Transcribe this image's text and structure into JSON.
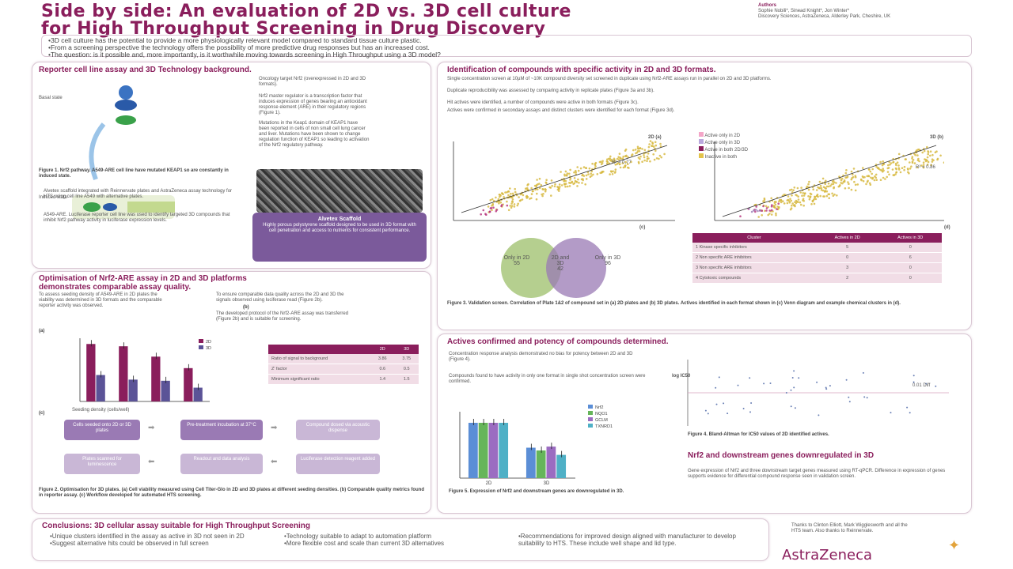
{
  "header": {
    "title_line1": "Side by side: An evaluation of 2D vs. 3D cell culture",
    "title_line2": "for High Throughput Screening in Drug Discovery",
    "authors_label": "Authors",
    "authors": "Sophie Nobili*, Sinead Knight*, Jon Winter*",
    "affiliation": "Discovery Sciences, AstraZeneca, Alderley Park, Cheshire, UK"
  },
  "intro": {
    "line1": "•3D cell culture has the potential to provide a more physiologically relevant model compared to standard tissue culture plastic.",
    "line2": "•From a screening perspective the technology offers the possibility of more predictive drug responses but has an increased cost.",
    "line3": "•The question: is it possible and, more importantly, is it worthwhile moving towards screening in High Throughput using a 3D model?"
  },
  "panel1": {
    "heading": "Reporter cell line assay and 3D Technology background.",
    "label_basal": "Basal state",
    "label_induced": "Induced state",
    "para1": "Oncology target Nrf2 (overexpressed in 2D and 3D formats).",
    "para2": "Nrf2 master regulator is a transcription factor that induces expression of genes bearing an antioxidant response element (ARE) in their regulatory regions (Figure 1).",
    "para3": "Mutations in the Keap1 domain of KEAP1 have been reported in cells of non small cell lung cancer and liver. Mutations have been shown to change regulation function of KEAP1 so leading to activation of the Nrf2 regulatory pathway.",
    "fig1_caption": "Figure 1. Nrf2 pathway. A549-ARE cell line have mutated KEAP1 so are constantly in induced state.",
    "para4": "Alvetex scaffold integrated with Reinnervate plates and AstraZeneca assay technology for HTS using cell line A549 with alternative plates.",
    "para5": "A549-ARE. Luciferase reporter cell line was used to identify targeted 3D compounds that inhibit Nrf2 pathway activity in luciferase expression levels.",
    "scaffold_title": "Alvetex Scaffold",
    "scaffold_text": "Highly porous polystyrene scaffold designed to be used in 3D format with cell penetration and access to nutrients for consistent performance."
  },
  "panel2": {
    "heading_line1": "Optimisation of Nrf2-ARE assay in 2D and 3D platforms",
    "heading_line2": "demonstrates comparable assay quality.",
    "para1": "To assess seeding density of A549-ARE in 2D plates the viability was determined in 3D formats and the comparable reporter activity was observed.",
    "para2": "To ensure comparable data quality across the 2D and 3D the signals observed using luciferase read (Figure 2b).",
    "para3": "The developed protocol of the Nrf2-ARE assay was transferred (Figure 2b) and is suitable for screening.",
    "label_a": "(a)",
    "label_b": "(b)",
    "label_c": "(c)",
    "x_axis_label": "Seeding density (cells/well)",
    "table_headers": [
      "",
      "2D",
      "3D"
    ],
    "table_rows": [
      [
        "Ratio of signal to background",
        "3.86",
        "3.75"
      ],
      [
        "Z' factor",
        "0.6",
        "0.5"
      ],
      [
        "Minimum significant ratio",
        "1.4",
        "1.5"
      ]
    ],
    "workflow": [
      "Cells seeded onto 2D or 3D plates",
      "Pre-treatment incubation at 37°C",
      "Compound dosed via acoustic dispense",
      "Plates scanned for luminescence",
      "Readout and data analysis",
      "Luciferase detection reagent added"
    ],
    "caption": "Figure 2. Optimisation for 3D plates. (a) Cell viability measured using Cell Titer-Glo in 2D and 3D plates at different seeding densities. (b) Comparable quality metrics found in reporter assay. (c) Workflow developed for automated HTS screening."
  },
  "panel3": {
    "heading": "Identification of compounds with specific activity in 2D and 3D formats.",
    "para1": "Single concentration screen at 10µM of ~10K compound diversity set screened in duplicate using Nrf2-ARE assays run in parallel on 2D and 3D platforms.",
    "para2": "Duplicate reproducibility was assessed by comparing activity in replicate plates (Figure 3a and 3b).",
    "para3": "Hit actives were identified, a number of compounds were active in both formats (Figure 3c).",
    "para4": "Actives were confirmed in secondary assays and distinct clusters were identified for each format (Figure 3d).",
    "scatter_a_label": "2D (a)",
    "scatter_b_label": "3D (b)",
    "r2_a": "R² = 0.77",
    "r2_b": "R² = 0.86",
    "label_c": "(c)",
    "label_d": "(d)",
    "legend": [
      "Active only in 2D",
      "Active only in 3D",
      "Active in both 2D/3D",
      "Inactive in both"
    ],
    "venn_left": "Only in 2D",
    "venn_left_count": "55",
    "venn_mid": "2D and 3D",
    "venn_mid_count": "42",
    "venn_right": "Only in 3D",
    "venn_right_count": "96",
    "table_headers": [
      "Cluster",
      "Actives in 2D",
      "Actives in 3D"
    ],
    "table_rows": [
      [
        "1 Kinase specific inhibitors",
        "5",
        "0"
      ],
      [
        "2 Non specific ARE inhibitors",
        "0",
        "6"
      ],
      [
        "3 Non specific ARE inhibitors",
        "3",
        "0"
      ],
      [
        "4 Cytotoxic compounds",
        "2",
        "0"
      ]
    ],
    "caption": "Figure 3. Validation screen. Correlation of Plate 1&2 of compound set in (a) 2D plates and (b) 3D plates. Actives identified in each format shown in (c) Venn diagram and example chemical clusters in (d)."
  },
  "panel4": {
    "heading": "Actives confirmed and potency of compounds determined.",
    "para1": "Concentration response analysis demonstrated no bias for potency between 2D and 3D (Figure 4).",
    "para2": "Compounds found to have activity in only one format in single shot concentration screen were confirmed.",
    "caption_bar": "Figure 5. Expression of Nrf2 and downstream genes are downregulated in 3D.",
    "caption_scatter": "Figure 4. Bland-Altman for IC50 values of 2D identified actives.",
    "bar_groups": [
      "2D",
      "3D"
    ],
    "scatter_y_label": "log IC50",
    "scatter_mean_label": "0.01 Diff",
    "subhead": "Nrf2 and downstream genes downregulated in 3D",
    "para3": "Gene expression of Nrf2 and three downstream target genes measured using RT-qPCR. Difference in expression of genes supports evidence for differential compound response seen in validation screen."
  },
  "chart_data": [
    {
      "type": "bar",
      "title": "",
      "xlabel": "Seeding density (cells/well)",
      "ylabel": "Luminescence",
      "categories": [
        "A",
        "B",
        "C",
        "D"
      ],
      "series": [
        {
          "name": "2D",
          "color": "#8a1e5c",
          "values": [
            100,
            96,
            78,
            58
          ]
        },
        {
          "name": "3D",
          "color": "#5b5397",
          "values": [
            46,
            38,
            36,
            24
          ]
        }
      ],
      "ylim": [
        0,
        110
      ]
    },
    {
      "type": "bar",
      "title": "",
      "xlabel": "",
      "ylabel": "",
      "categories": [
        "2D",
        "3D"
      ],
      "series": [
        {
          "name": "Nrf2",
          "color": "#5b8ed6",
          "values": [
            1.0,
            0.55
          ]
        },
        {
          "name": "NQO1",
          "color": "#66b55a",
          "values": [
            1.0,
            0.5
          ]
        },
        {
          "name": "GCLM",
          "color": "#9b6cc1",
          "values": [
            1.0,
            0.57
          ]
        },
        {
          "name": "TXNRD1",
          "color": "#4fb0c6",
          "values": [
            1.0,
            0.42
          ]
        }
      ],
      "ylim": [
        0,
        1.2
      ]
    }
  ],
  "conclusions": {
    "heading": "Conclusions: 3D cellular assay suitable for High Throughput Screening",
    "col1": [
      "•Unique clusters identified in the assay as active in 3D not seen in 2D",
      "•Suggest alternative hits could be observed in full screen"
    ],
    "col2": [
      "•Technology suitable to adapt to automation platform",
      "•More flexible cost and scale than current 3D alternatives"
    ],
    "col3": [
      "•Recommendations for improved design aligned with manufacturer to develop suitability to HTS. These include well shape and lid type."
    ],
    "thanks": "Thanks to Clinton Elliott, Mark Wigglesworth and all the HTS team. Also thanks to Reinnervate.",
    "logo": "AstraZeneca"
  }
}
